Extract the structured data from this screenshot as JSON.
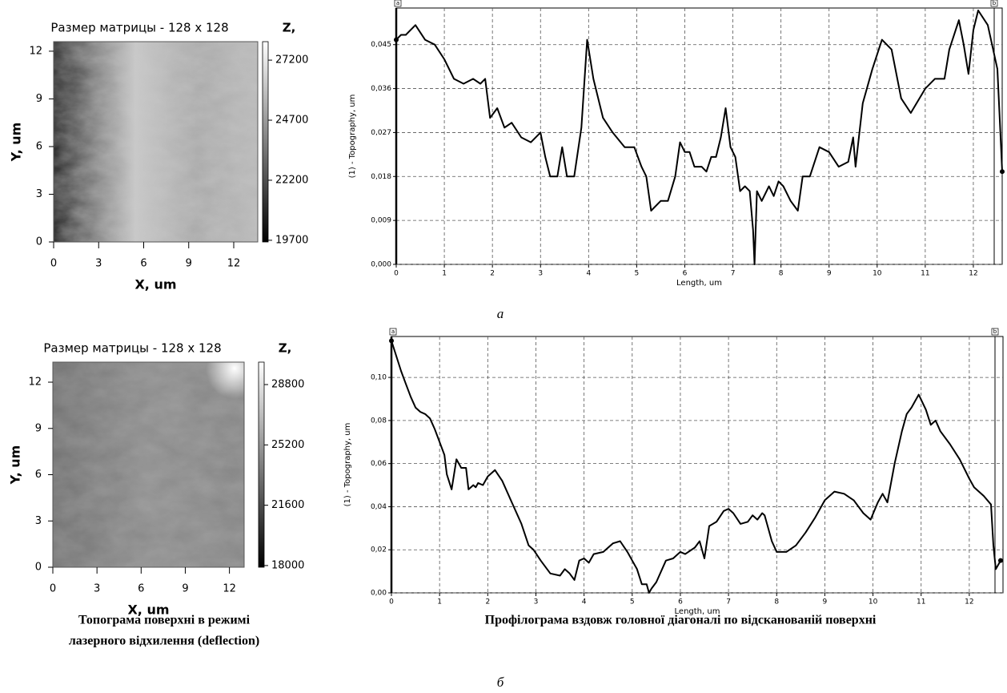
{
  "chart_data": [
    {
      "type": "image",
      "title": "Размер матрицы - 128 x 128",
      "xlabel": "X, um",
      "ylabel": "Y, um",
      "zlabel": "Z,",
      "xlim": [
        0,
        13.6
      ],
      "ylim": [
        0,
        12.6
      ],
      "xticks": [
        0,
        3,
        6,
        9,
        12
      ],
      "yticks": [
        0,
        3,
        6,
        9,
        12
      ],
      "zlim": [
        19630,
        27970
      ],
      "zticks": [
        19700,
        22200,
        24700,
        27200
      ]
    },
    {
      "type": "line",
      "xlabel": "Length, um",
      "ylabel": "(1) - Topography, um",
      "cursors": [
        "a",
        "b"
      ],
      "color": "#000000",
      "grid": true,
      "xlim": [
        0,
        12.6
      ],
      "ylim": [
        0,
        0.0525
      ],
      "xticks": [
        0,
        1,
        2,
        3,
        4,
        5,
        6,
        7,
        8,
        9,
        10,
        11,
        12
      ],
      "yticks": [
        {
          "value": 0,
          "label": "0,000"
        },
        {
          "value": 0.009,
          "label": "0,009"
        },
        {
          "value": 0.018,
          "label": "0,018"
        },
        {
          "value": 0.027,
          "label": "0,027"
        },
        {
          "value": 0.036,
          "label": "0,036"
        },
        {
          "value": 0.045,
          "label": "0,045"
        }
      ],
      "x": [
        0,
        0.1,
        0.2,
        0.4,
        0.6,
        0.8,
        1.0,
        1.2,
        1.4,
        1.6,
        1.75,
        1.85,
        1.95,
        2.1,
        2.25,
        2.4,
        2.6,
        2.8,
        3.0,
        3.1,
        3.2,
        3.35,
        3.45,
        3.55,
        3.7,
        3.85,
        3.97,
        4.1,
        4.3,
        4.5,
        4.75,
        4.95,
        5.1,
        5.2,
        5.3,
        5.5,
        5.65,
        5.8,
        5.9,
        6.0,
        6.1,
        6.2,
        6.35,
        6.45,
        6.55,
        6.65,
        6.75,
        6.85,
        6.95,
        7.05,
        7.15,
        7.25,
        7.35,
        7.42,
        7.45,
        7.5,
        7.6,
        7.75,
        7.85,
        7.95,
        8.05,
        8.2,
        8.35,
        8.45,
        8.6,
        8.8,
        9.0,
        9.2,
        9.4,
        9.5,
        9.55,
        9.7,
        9.9,
        10.1,
        10.3,
        10.5,
        10.7,
        11.0,
        11.2,
        11.4,
        11.5,
        11.7,
        11.8,
        11.9,
        12.0,
        12.1,
        12.3,
        12.5,
        12.6
      ],
      "values": [
        0.046,
        0.047,
        0.047,
        0.049,
        0.046,
        0.045,
        0.042,
        0.038,
        0.037,
        0.038,
        0.037,
        0.038,
        0.03,
        0.032,
        0.028,
        0.029,
        0.026,
        0.025,
        0.027,
        0.022,
        0.018,
        0.018,
        0.024,
        0.018,
        0.018,
        0.028,
        0.046,
        0.038,
        0.03,
        0.027,
        0.024,
        0.024,
        0.02,
        0.018,
        0.011,
        0.013,
        0.013,
        0.018,
        0.025,
        0.023,
        0.023,
        0.02,
        0.02,
        0.019,
        0.022,
        0.022,
        0.026,
        0.032,
        0.024,
        0.022,
        0.015,
        0.016,
        0.015,
        0.007,
        0.0,
        0.015,
        0.013,
        0.016,
        0.014,
        0.017,
        0.016,
        0.013,
        0.011,
        0.018,
        0.018,
        0.024,
        0.023,
        0.02,
        0.021,
        0.026,
        0.02,
        0.033,
        0.04,
        0.046,
        0.044,
        0.034,
        0.031,
        0.036,
        0.038,
        0.038,
        0.044,
        0.05,
        0.045,
        0.039,
        0.048,
        0.052,
        0.049,
        0.04,
        0.019
      ]
    },
    {
      "type": "image",
      "title": "Размер матрицы - 128 x 128",
      "xlabel": "X, um",
      "ylabel": "Y, um",
      "zlabel": "Z,",
      "xlim": [
        0,
        13
      ],
      "ylim": [
        0,
        13.3
      ],
      "xticks": [
        0,
        3,
        6,
        9,
        12
      ],
      "yticks": [
        0,
        3,
        6,
        9,
        12
      ],
      "zlim": [
        17900,
        30140
      ],
      "zticks": [
        18000,
        21600,
        25200,
        28800
      ]
    },
    {
      "type": "line",
      "xlabel": "Length, um",
      "ylabel": "(1) - Topography, um",
      "cursors": [
        "a",
        "b"
      ],
      "color": "#000000",
      "grid": true,
      "xlim": [
        0,
        12.7
      ],
      "ylim": [
        0,
        0.119
      ],
      "xticks": [
        0,
        1,
        2,
        3,
        4,
        5,
        6,
        7,
        8,
        9,
        10,
        11,
        12
      ],
      "yticks": [
        {
          "value": 0,
          "label": "0,00"
        },
        {
          "value": 0.02,
          "label": "0,02"
        },
        {
          "value": 0.04,
          "label": "0,04"
        },
        {
          "value": 0.06,
          "label": "0,06"
        },
        {
          "value": 0.08,
          "label": "0,08"
        },
        {
          "value": 0.1,
          "label": "0,10"
        }
      ],
      "x": [
        0,
        0.1,
        0.2,
        0.3,
        0.4,
        0.5,
        0.6,
        0.7,
        0.8,
        0.9,
        1.0,
        1.1,
        1.15,
        1.25,
        1.35,
        1.45,
        1.55,
        1.6,
        1.7,
        1.75,
        1.8,
        1.9,
        2.0,
        2.15,
        2.3,
        2.5,
        2.7,
        2.85,
        2.95,
        3.1,
        3.3,
        3.5,
        3.6,
        3.7,
        3.8,
        3.9,
        4.0,
        4.1,
        4.2,
        4.4,
        4.6,
        4.75,
        4.9,
        5.0,
        5.1,
        5.2,
        5.3,
        5.35,
        5.4,
        5.5,
        5.7,
        5.85,
        6.0,
        6.1,
        6.3,
        6.4,
        6.5,
        6.6,
        6.75,
        6.9,
        7.0,
        7.1,
        7.25,
        7.4,
        7.5,
        7.6,
        7.7,
        7.75,
        7.8,
        7.9,
        8.0,
        8.2,
        8.4,
        8.6,
        8.8,
        9.0,
        9.2,
        9.4,
        9.6,
        9.8,
        9.95,
        10.1,
        10.2,
        10.3,
        10.45,
        10.6,
        10.7,
        10.8,
        10.95,
        11.1,
        11.2,
        11.3,
        11.4,
        11.6,
        11.8,
        12.0,
        12.1,
        12.3,
        12.45,
        12.5,
        12.55,
        12.65
      ],
      "values": [
        0.117,
        0.11,
        0.103,
        0.097,
        0.091,
        0.086,
        0.084,
        0.083,
        0.081,
        0.076,
        0.07,
        0.064,
        0.055,
        0.048,
        0.062,
        0.058,
        0.058,
        0.048,
        0.05,
        0.049,
        0.051,
        0.05,
        0.054,
        0.057,
        0.052,
        0.042,
        0.032,
        0.022,
        0.02,
        0.015,
        0.009,
        0.008,
        0.011,
        0.009,
        0.006,
        0.015,
        0.016,
        0.014,
        0.018,
        0.019,
        0.023,
        0.024,
        0.019,
        0.015,
        0.011,
        0.004,
        0.004,
        0,
        0.002,
        0.005,
        0.015,
        0.016,
        0.019,
        0.018,
        0.021,
        0.024,
        0.016,
        0.031,
        0.033,
        0.038,
        0.039,
        0.037,
        0.032,
        0.033,
        0.036,
        0.034,
        0.037,
        0.036,
        0.032,
        0.024,
        0.019,
        0.019,
        0.022,
        0.028,
        0.035,
        0.043,
        0.047,
        0.046,
        0.043,
        0.037,
        0.034,
        0.042,
        0.046,
        0.042,
        0.06,
        0.075,
        0.083,
        0.086,
        0.092,
        0.085,
        0.078,
        0.08,
        0.075,
        0.069,
        0.062,
        0.053,
        0.049,
        0.045,
        0.041,
        0.022,
        0.011,
        0.015
      ]
    }
  ],
  "captions": {
    "left": [
      "Топограма поверхні в режимі",
      "лазерного відхилення (deflection)"
    ],
    "right": "Профілограма вздовж головної діагоналі по відсканованій поверхні",
    "panel_a": "а",
    "panel_b": "б"
  }
}
